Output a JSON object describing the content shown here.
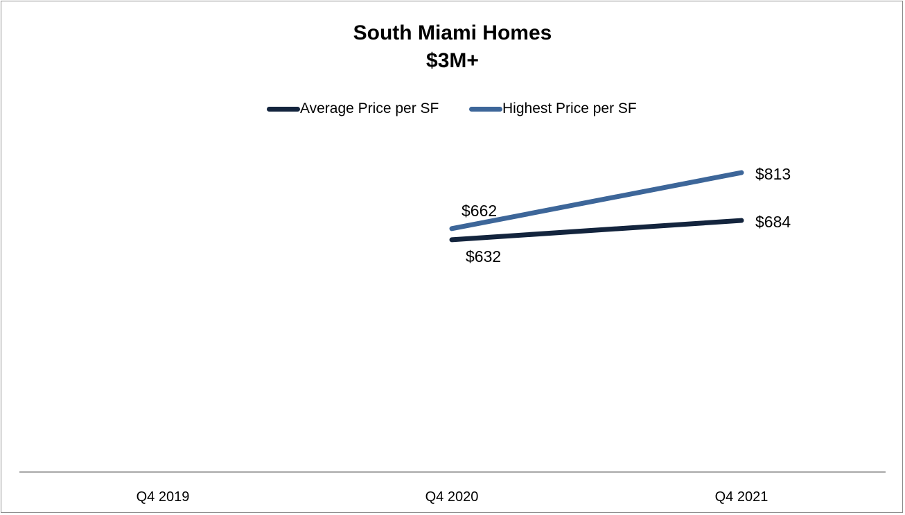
{
  "chart_data": {
    "type": "line",
    "title": "South Miami Homes",
    "subtitle": "$3M+",
    "categories": [
      "Q4 2019",
      "Q4 2020",
      "Q4 2021"
    ],
    "series": [
      {
        "name": "Average Price per SF",
        "values": [
          null,
          632,
          684
        ],
        "data_labels": [
          null,
          "$632",
          "$684"
        ],
        "color": "#13243d"
      },
      {
        "name": "Highest Price per SF",
        "values": [
          null,
          662,
          813
        ],
        "data_labels": [
          null,
          "$662",
          "$813"
        ],
        "color": "#3d6699"
      }
    ],
    "xlabel": "",
    "ylabel": "",
    "ylim": [
      0,
      1100
    ],
    "grid": false,
    "legend_position": "top"
  }
}
